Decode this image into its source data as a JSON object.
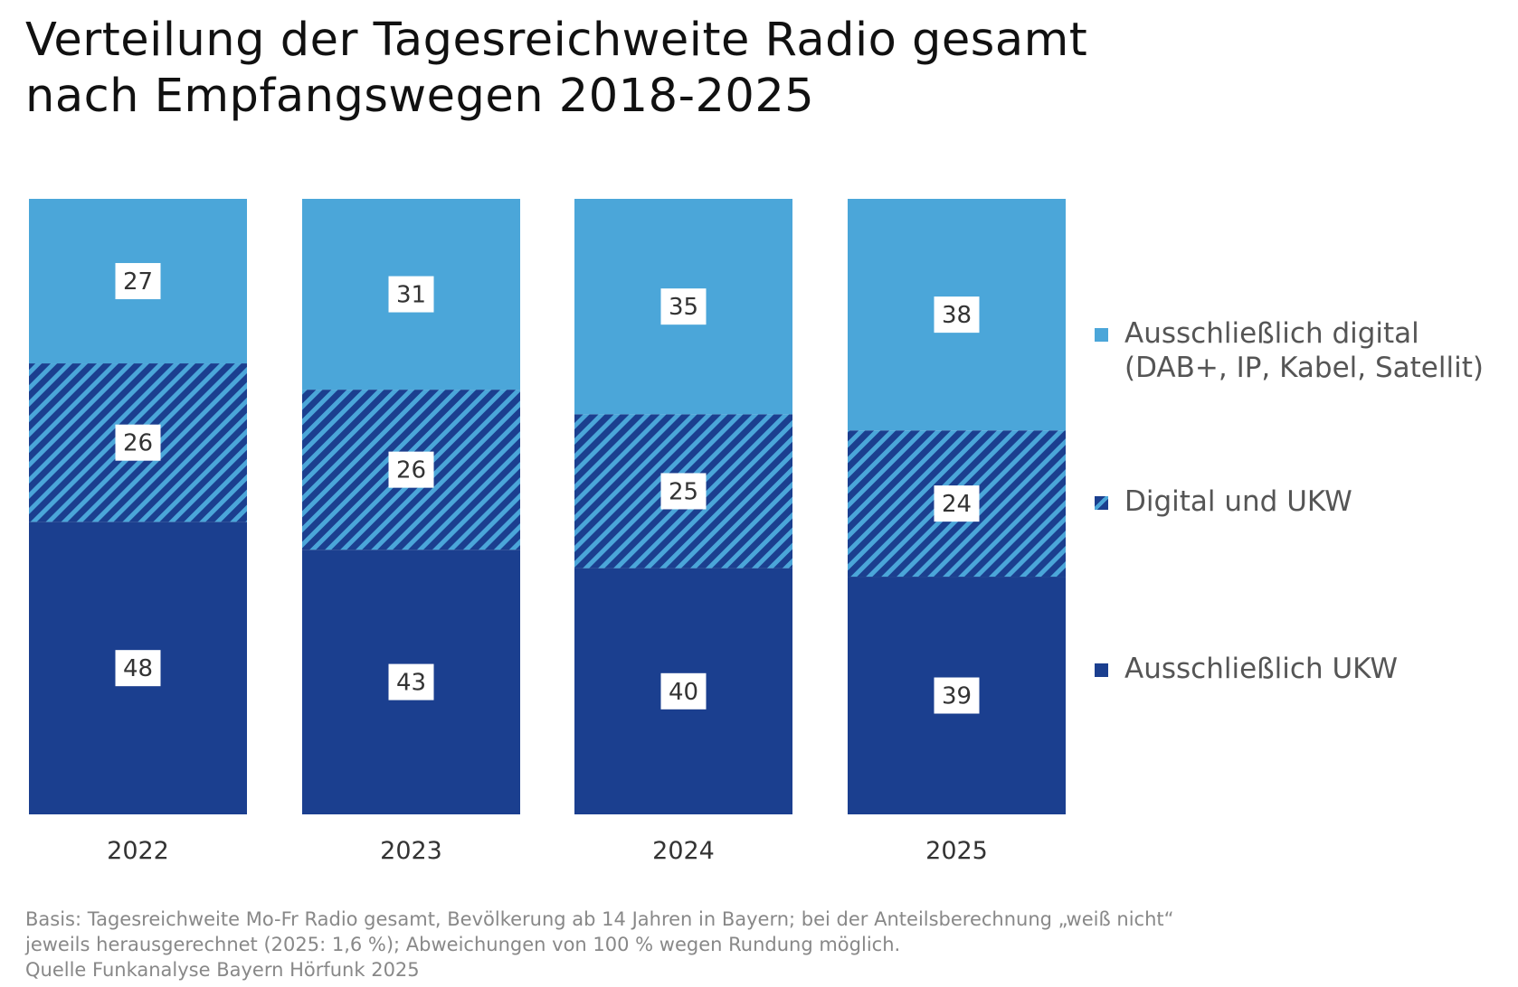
{
  "title_line1": "Verteilung der Tagesreichweite Radio gesamt",
  "title_line2": "nach Empfangswegen 2018-2025",
  "chart_data": {
    "type": "bar",
    "stacked": true,
    "categories": [
      "2022",
      "2023",
      "2024",
      "2025"
    ],
    "series": [
      {
        "name": "Ausschließlich UKW",
        "values": [
          48,
          43,
          40,
          39
        ],
        "color": "#1b3f8f",
        "pattern": "solid"
      },
      {
        "name": "Digital und UKW",
        "values": [
          26,
          26,
          25,
          24
        ],
        "color": "#1b3f8f",
        "pattern": "hatched"
      },
      {
        "name": "Ausschließlich digital (DAB+, IP, Kabel, Satellit)",
        "values": [
          27,
          31,
          35,
          38
        ],
        "color": "#4ba6d9",
        "pattern": "solid"
      }
    ],
    "legend_position": "right",
    "grid": false
  },
  "legend": {
    "digital_line1": "Ausschließlich digital",
    "digital_line2": "(DAB+, IP, Kabel, Satellit)",
    "mixed": "Digital und UKW",
    "ukw": "Ausschließlich UKW"
  },
  "footer": {
    "line1": "Basis: Tagesreichweite Mo-Fr Radio gesamt, Bevölkerung ab 14 Jahren in Bayern; bei der Anteilsberechnung „weiß nicht“",
    "line2": "jeweils herausgerechnet (2025: 1,6 %); Abweichungen von 100 % wegen Rundung möglich.",
    "line3": "Quelle Funkanalyse Bayern Hörfunk 2025"
  }
}
